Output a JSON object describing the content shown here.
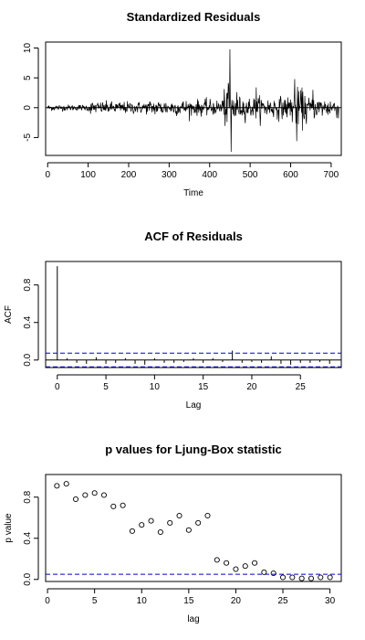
{
  "chart_data": [
    {
      "type": "line",
      "title": "Standardized Residuals",
      "xlabel": "Time",
      "ylabel": "",
      "xlim": [
        -5,
        725
      ],
      "ylim": [
        -8,
        11
      ],
      "xticks": [
        0,
        100,
        200,
        300,
        400,
        500,
        600,
        700
      ],
      "yticks": [
        -5,
        0,
        5,
        10
      ],
      "n": 720,
      "hline": 0,
      "notable_points": [
        {
          "x": 450,
          "y": 9.8
        },
        {
          "x": 453,
          "y": -7.4
        },
        {
          "x": 447,
          "y": 3.7
        },
        {
          "x": 610,
          "y": 4.8
        },
        {
          "x": 615,
          "y": -5.6
        },
        {
          "x": 515,
          "y": 3.4
        },
        {
          "x": 655,
          "y": 3.0
        }
      ]
    },
    {
      "type": "bar",
      "title": "ACF of Residuals",
      "xlabel": "Lag",
      "ylabel": "ACF",
      "xlim": [
        -1.2,
        29.2
      ],
      "ylim": [
        -0.08,
        1.05
      ],
      "xticks": [
        0,
        5,
        10,
        15,
        20,
        25
      ],
      "yticks": [
        0.0,
        0.4,
        0.8
      ],
      "lags": [
        0,
        1,
        2,
        3,
        4,
        5,
        6,
        7,
        8,
        9,
        10,
        11,
        12,
        13,
        14,
        15,
        16,
        17,
        18,
        19,
        20,
        21,
        22,
        23,
        24,
        25,
        26,
        27,
        28
      ],
      "values": [
        1.0,
        0.02,
        -0.03,
        -0.04,
        0.03,
        -0.04,
        -0.03,
        0.02,
        -0.04,
        -0.05,
        0.02,
        -0.03,
        -0.03,
        -0.02,
        0.02,
        -0.03,
        0.02,
        -0.02,
        0.1,
        -0.03,
        -0.02,
        -0.03,
        0.04,
        -0.04,
        -0.05,
        -0.03,
        -0.03,
        -0.02,
        -0.04
      ],
      "ci": 0.073
    },
    {
      "type": "scatter",
      "title": "p values for Ljung-Box statistic",
      "xlabel": "lag",
      "ylabel": "p value",
      "xlim": [
        -0.2,
        31.2
      ],
      "ylim": [
        -0.02,
        1.02
      ],
      "xticks": [
        0,
        5,
        10,
        15,
        20,
        25,
        30
      ],
      "yticks": [
        0.0,
        0.4,
        0.8
      ],
      "x": [
        1,
        2,
        3,
        4,
        5,
        6,
        7,
        8,
        9,
        10,
        11,
        12,
        13,
        14,
        15,
        16,
        17,
        18,
        19,
        20,
        21,
        22,
        23,
        24,
        25,
        26,
        27,
        28,
        29,
        30
      ],
      "y": [
        0.91,
        0.93,
        0.78,
        0.82,
        0.84,
        0.82,
        0.71,
        0.72,
        0.47,
        0.53,
        0.57,
        0.46,
        0.55,
        0.62,
        0.48,
        0.55,
        0.62,
        0.19,
        0.16,
        0.1,
        0.13,
        0.16,
        0.07,
        0.06,
        0.02,
        0.02,
        0.01,
        0.01,
        0.02,
        0.02
      ],
      "hline": 0.05
    }
  ]
}
